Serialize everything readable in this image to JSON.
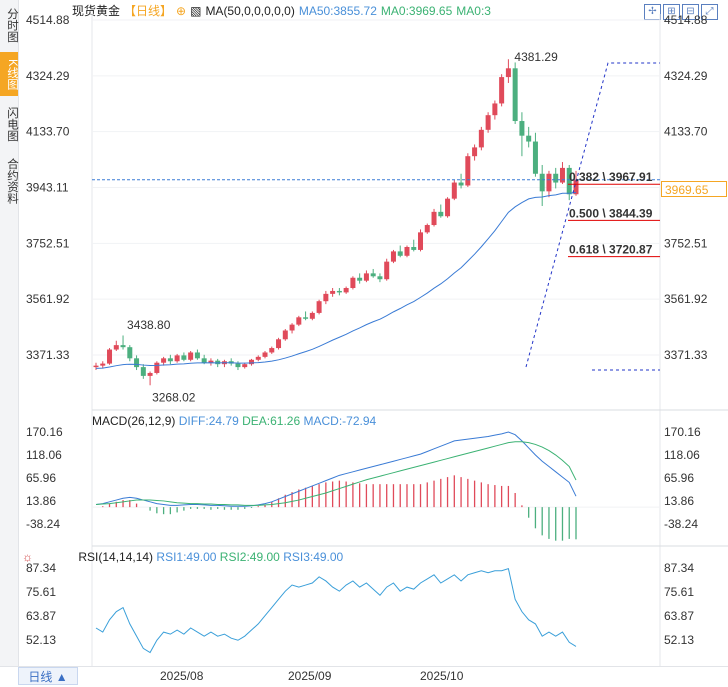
{
  "sidebar": {
    "tabs": [
      {
        "label": "分时图",
        "active": false
      },
      {
        "label": "K线图",
        "active": true
      },
      {
        "label": "闪电图",
        "active": false
      },
      {
        "label": "合约资料",
        "active": false
      }
    ]
  },
  "header": {
    "symbol": "现货黄金",
    "period": "【日线】",
    "ma_label": "MA(50,0,0,0,0,0)",
    "ma50": "MA50:3855.72",
    "ma0a": "MA0:3969.65",
    "ma0b": "MA0:3"
  },
  "price_axis": {
    "ticks": [
      "4514.88",
      "4324.29",
      "4133.70",
      "3943.11",
      "3752.51",
      "3561.92",
      "3371.33"
    ],
    "current": "3969.65"
  },
  "annotations": {
    "high": "4381.29",
    "low": "3268.02",
    "local_high": "3438.80",
    "fib": [
      {
        "ratio": "0.382",
        "value": "3967.91"
      },
      {
        "ratio": "0.500",
        "value": "3844.39"
      },
      {
        "ratio": "0.618",
        "value": "3720.87"
      }
    ]
  },
  "macd": {
    "label": "MACD(26,12,9)",
    "diff": "DIFF:24.79",
    "dea": "DEA:61.26",
    "macd": "MACD:-72.94",
    "ticks": [
      "170.16",
      "118.06",
      "65.96",
      "13.86",
      "-38.24"
    ]
  },
  "rsi": {
    "label": "RSI(14,14,14)",
    "rsi1": "RSI1:49.00",
    "rsi2": "RSI2:49.00",
    "rsi3": "RSI3:49.00",
    "ticks": [
      "87.34",
      "75.61",
      "63.87",
      "52.13"
    ]
  },
  "bottom": {
    "period_button": "日线 ▲",
    "dates": [
      "2025/08",
      "2025/09",
      "2025/10"
    ]
  },
  "chart_data": {
    "type": "candlestick",
    "price_range": [
      3280,
      4520
    ],
    "candles": [
      [
        3330,
        3345,
        3320,
        3335
      ],
      [
        3335,
        3350,
        3325,
        3342
      ],
      [
        3342,
        3395,
        3338,
        3390
      ],
      [
        3390,
        3420,
        3385,
        3405
      ],
      [
        3405,
        3438,
        3390,
        3398
      ],
      [
        3398,
        3405,
        3350,
        3360
      ],
      [
        3360,
        3370,
        3320,
        3330
      ],
      [
        3330,
        3340,
        3290,
        3300
      ],
      [
        3300,
        3315,
        3268,
        3310
      ],
      [
        3310,
        3350,
        3305,
        3345
      ],
      [
        3345,
        3365,
        3335,
        3360
      ],
      [
        3360,
        3372,
        3340,
        3350
      ],
      [
        3350,
        3375,
        3345,
        3370
      ],
      [
        3370,
        3380,
        3350,
        3355
      ],
      [
        3355,
        3385,
        3350,
        3380
      ],
      [
        3380,
        3390,
        3355,
        3360
      ],
      [
        3360,
        3372,
        3340,
        3345
      ],
      [
        3345,
        3360,
        3335,
        3352
      ],
      [
        3352,
        3358,
        3330,
        3340
      ],
      [
        3340,
        3355,
        3330,
        3350
      ],
      [
        3350,
        3360,
        3335,
        3342
      ],
      [
        3342,
        3350,
        3320,
        3330
      ],
      [
        3330,
        3345,
        3325,
        3340
      ],
      [
        3340,
        3358,
        3335,
        3355
      ],
      [
        3355,
        3370,
        3350,
        3365
      ],
      [
        3365,
        3385,
        3360,
        3380
      ],
      [
        3380,
        3400,
        3375,
        3395
      ],
      [
        3395,
        3430,
        3390,
        3425
      ],
      [
        3425,
        3460,
        3420,
        3455
      ],
      [
        3455,
        3480,
        3445,
        3475
      ],
      [
        3475,
        3505,
        3470,
        3500
      ],
      [
        3500,
        3520,
        3490,
        3495
      ],
      [
        3495,
        3520,
        3490,
        3515
      ],
      [
        3515,
        3560,
        3510,
        3555
      ],
      [
        3555,
        3590,
        3545,
        3580
      ],
      [
        3580,
        3600,
        3570,
        3590
      ],
      [
        3590,
        3600,
        3575,
        3585
      ],
      [
        3585,
        3605,
        3580,
        3600
      ],
      [
        3600,
        3640,
        3595,
        3635
      ],
      [
        3635,
        3650,
        3615,
        3625
      ],
      [
        3625,
        3660,
        3620,
        3650
      ],
      [
        3650,
        3665,
        3635,
        3640
      ],
      [
        3640,
        3650,
        3620,
        3630
      ],
      [
        3630,
        3700,
        3625,
        3690
      ],
      [
        3690,
        3730,
        3685,
        3725
      ],
      [
        3725,
        3745,
        3705,
        3710
      ],
      [
        3710,
        3745,
        3705,
        3740
      ],
      [
        3740,
        3765,
        3725,
        3730
      ],
      [
        3730,
        3800,
        3725,
        3790
      ],
      [
        3790,
        3820,
        3785,
        3815
      ],
      [
        3815,
        3870,
        3810,
        3860
      ],
      [
        3860,
        3885,
        3840,
        3845
      ],
      [
        3845,
        3910,
        3840,
        3905
      ],
      [
        3905,
        3970,
        3900,
        3960
      ],
      [
        3960,
        3990,
        3940,
        3950
      ],
      [
        3950,
        4060,
        3945,
        4050
      ],
      [
        4050,
        4090,
        4035,
        4080
      ],
      [
        4080,
        4150,
        4070,
        4140
      ],
      [
        4140,
        4200,
        4130,
        4190
      ],
      [
        4190,
        4240,
        4175,
        4230
      ],
      [
        4230,
        4330,
        4220,
        4320
      ],
      [
        4320,
        4381,
        4300,
        4350
      ],
      [
        4350,
        4370,
        4160,
        4170
      ],
      [
        4170,
        4200,
        4050,
        4120
      ],
      [
        4120,
        4150,
        4080,
        4100
      ],
      [
        4100,
        4130,
        3980,
        3990
      ],
      [
        3990,
        4020,
        3880,
        3930
      ],
      [
        3930,
        4000,
        3910,
        3990
      ],
      [
        3990,
        4010,
        3940,
        3960
      ],
      [
        3960,
        4030,
        3955,
        4010
      ],
      [
        4010,
        4020,
        3900,
        3920
      ],
      [
        3920,
        4000,
        3915,
        3969.65
      ]
    ],
    "macd_diff": [
      6,
      8,
      12,
      16,
      20,
      22,
      20,
      16,
      12,
      8,
      6,
      4,
      4,
      5,
      6,
      6,
      5,
      4,
      4,
      3,
      2,
      2,
      2,
      3,
      5,
      8,
      12,
      18,
      24,
      30,
      36,
      42,
      48,
      54,
      60,
      66,
      72,
      76,
      80,
      84,
      88,
      92,
      96,
      100,
      104,
      108,
      112,
      116,
      120,
      126,
      132,
      138,
      144,
      150,
      152,
      154,
      156,
      158,
      160,
      163,
      166,
      170,
      164,
      150,
      134,
      118,
      104,
      92,
      80,
      68,
      56,
      24.79
    ],
    "macd_dea": [
      6,
      7,
      8,
      10,
      12,
      14,
      16,
      16,
      16,
      15,
      14,
      12,
      10,
      9,
      8,
      8,
      7,
      7,
      6,
      6,
      5,
      5,
      4,
      4,
      4,
      5,
      6,
      8,
      10,
      13,
      16,
      20,
      24,
      28,
      32,
      37,
      42,
      47,
      52,
      57,
      62,
      66,
      70,
      74,
      78,
      82,
      86,
      90,
      94,
      98,
      102,
      106,
      110,
      114,
      118,
      122,
      126,
      130,
      134,
      138,
      142,
      146,
      148,
      148,
      146,
      142,
      136,
      128,
      118,
      106,
      92,
      61.26
    ],
    "rsi": [
      58,
      56,
      62,
      66,
      68,
      60,
      54,
      48,
      46,
      52,
      56,
      55,
      57,
      55,
      58,
      56,
      54,
      56,
      54,
      55,
      53,
      52,
      54,
      57,
      60,
      64,
      68,
      72,
      76,
      79,
      78,
      79,
      80,
      83,
      81,
      78,
      76,
      79,
      81,
      78,
      80,
      77,
      74,
      78,
      80,
      76,
      78,
      77,
      80,
      82,
      84,
      80,
      82,
      84,
      81,
      84,
      85,
      86,
      85,
      86,
      86,
      87,
      72,
      66,
      62,
      60,
      54,
      56,
      54,
      56,
      51,
      49
    ]
  }
}
